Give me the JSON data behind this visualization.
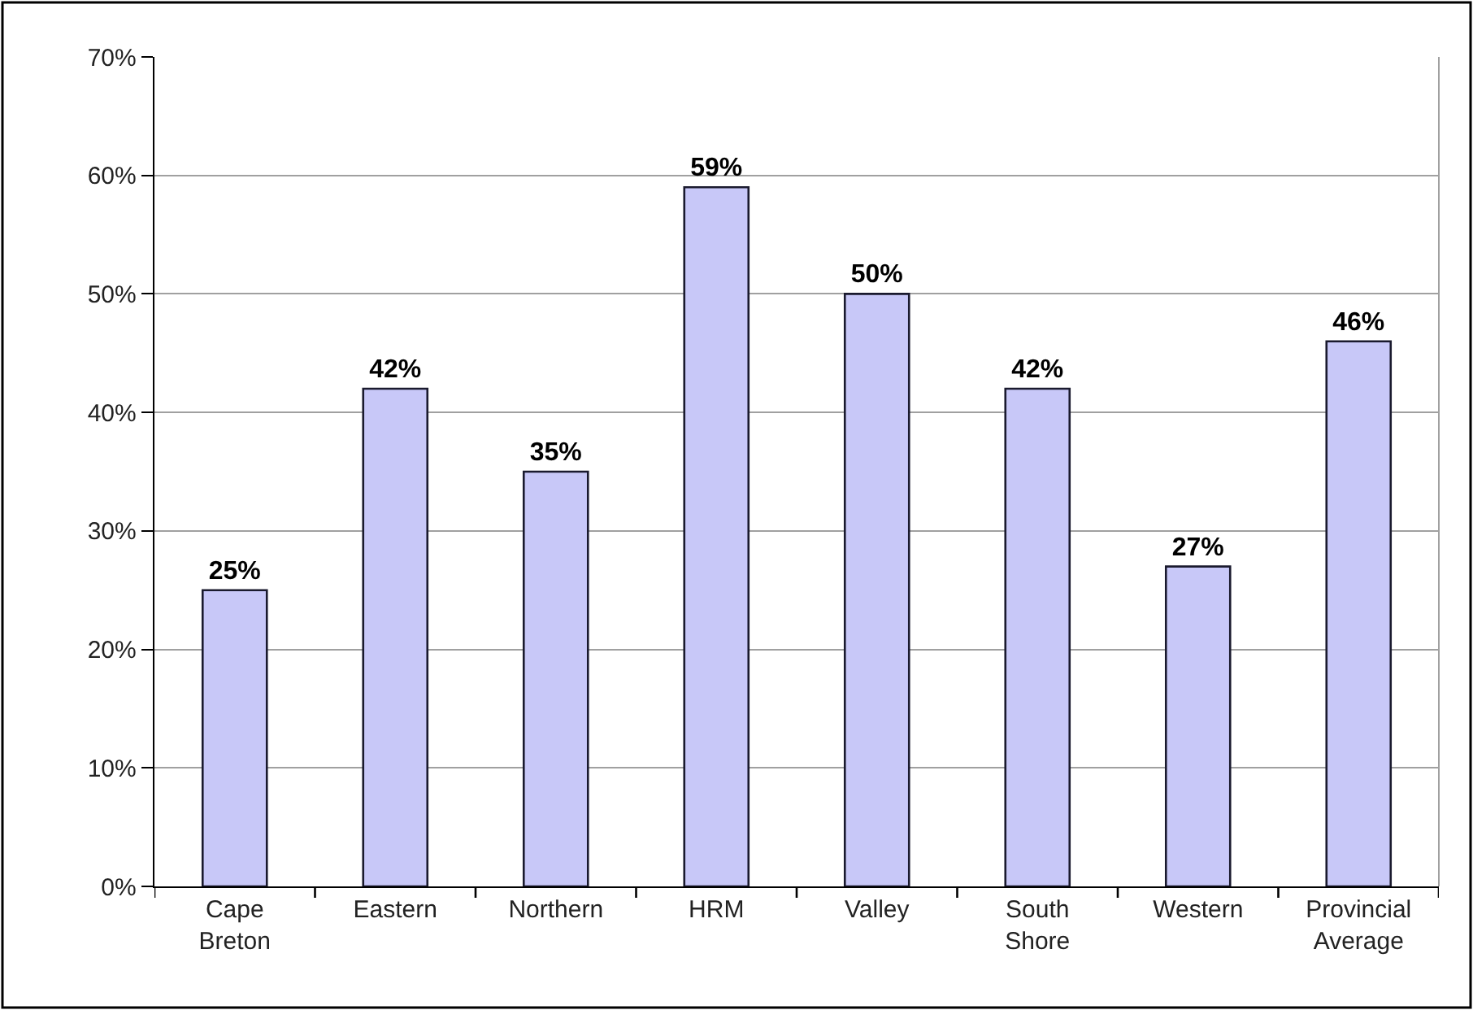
{
  "chart_data": {
    "type": "bar",
    "categories": [
      "Cape Breton",
      "Eastern",
      "Northern",
      "HRM",
      "Valley",
      "South Shore",
      "Western",
      "Provincial Average"
    ],
    "values": [
      25,
      42,
      35,
      59,
      50,
      42,
      27,
      46
    ],
    "value_labels": [
      "25%",
      "42%",
      "35%",
      "59%",
      "50%",
      "42%",
      "27%",
      "46%"
    ],
    "color": "#c8c8f8",
    "ylim": [
      0,
      70
    ],
    "yticks": [
      {
        "value": 0,
        "label": "0%"
      },
      {
        "value": 10,
        "label": "10%"
      },
      {
        "value": 20,
        "label": "20%"
      },
      {
        "value": 30,
        "label": "30%"
      },
      {
        "value": 40,
        "label": "40%"
      },
      {
        "value": 50,
        "label": "50%"
      },
      {
        "value": 60,
        "label": "60%"
      },
      {
        "value": 70,
        "label": "70%"
      }
    ],
    "grid": "y"
  }
}
